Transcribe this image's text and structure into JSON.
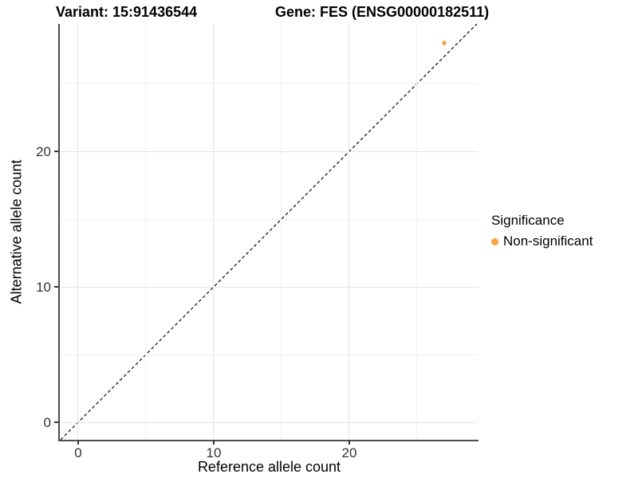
{
  "chart_data": {
    "type": "scatter",
    "title_left": "Variant: 15:91436544",
    "title_right": "Gene: FES (ENSG00000182511)",
    "xlabel": "Reference allele count",
    "ylabel": "Alternative allele count",
    "xlim": [
      -1.35,
      29.53
    ],
    "ylim": [
      -1.29,
      29.41
    ],
    "x_ticks": {
      "major": [
        0,
        10,
        20
      ],
      "minor": [
        5,
        15,
        25
      ]
    },
    "y_ticks": {
      "major": [
        0,
        10,
        20
      ],
      "minor": [
        5,
        15,
        25
      ]
    },
    "grid": "major+minor",
    "legend_position": "right",
    "legend_title": "Significance",
    "series": [
      {
        "name": "Non-significant",
        "color": "#F9A242",
        "marker": "circle",
        "points": [
          {
            "x": 27,
            "y": 28
          }
        ]
      }
    ],
    "reference_line": {
      "type": "identity y=x",
      "style": "dashed",
      "color": "#1a1a1a"
    }
  },
  "colors": {
    "background": "#FFFFFF",
    "grid_major": "#E3E3E3",
    "grid_minor": "#F1F1F1",
    "axis_line": "#4D4D4D",
    "tick": "#333333",
    "point": "#F9A242"
  }
}
